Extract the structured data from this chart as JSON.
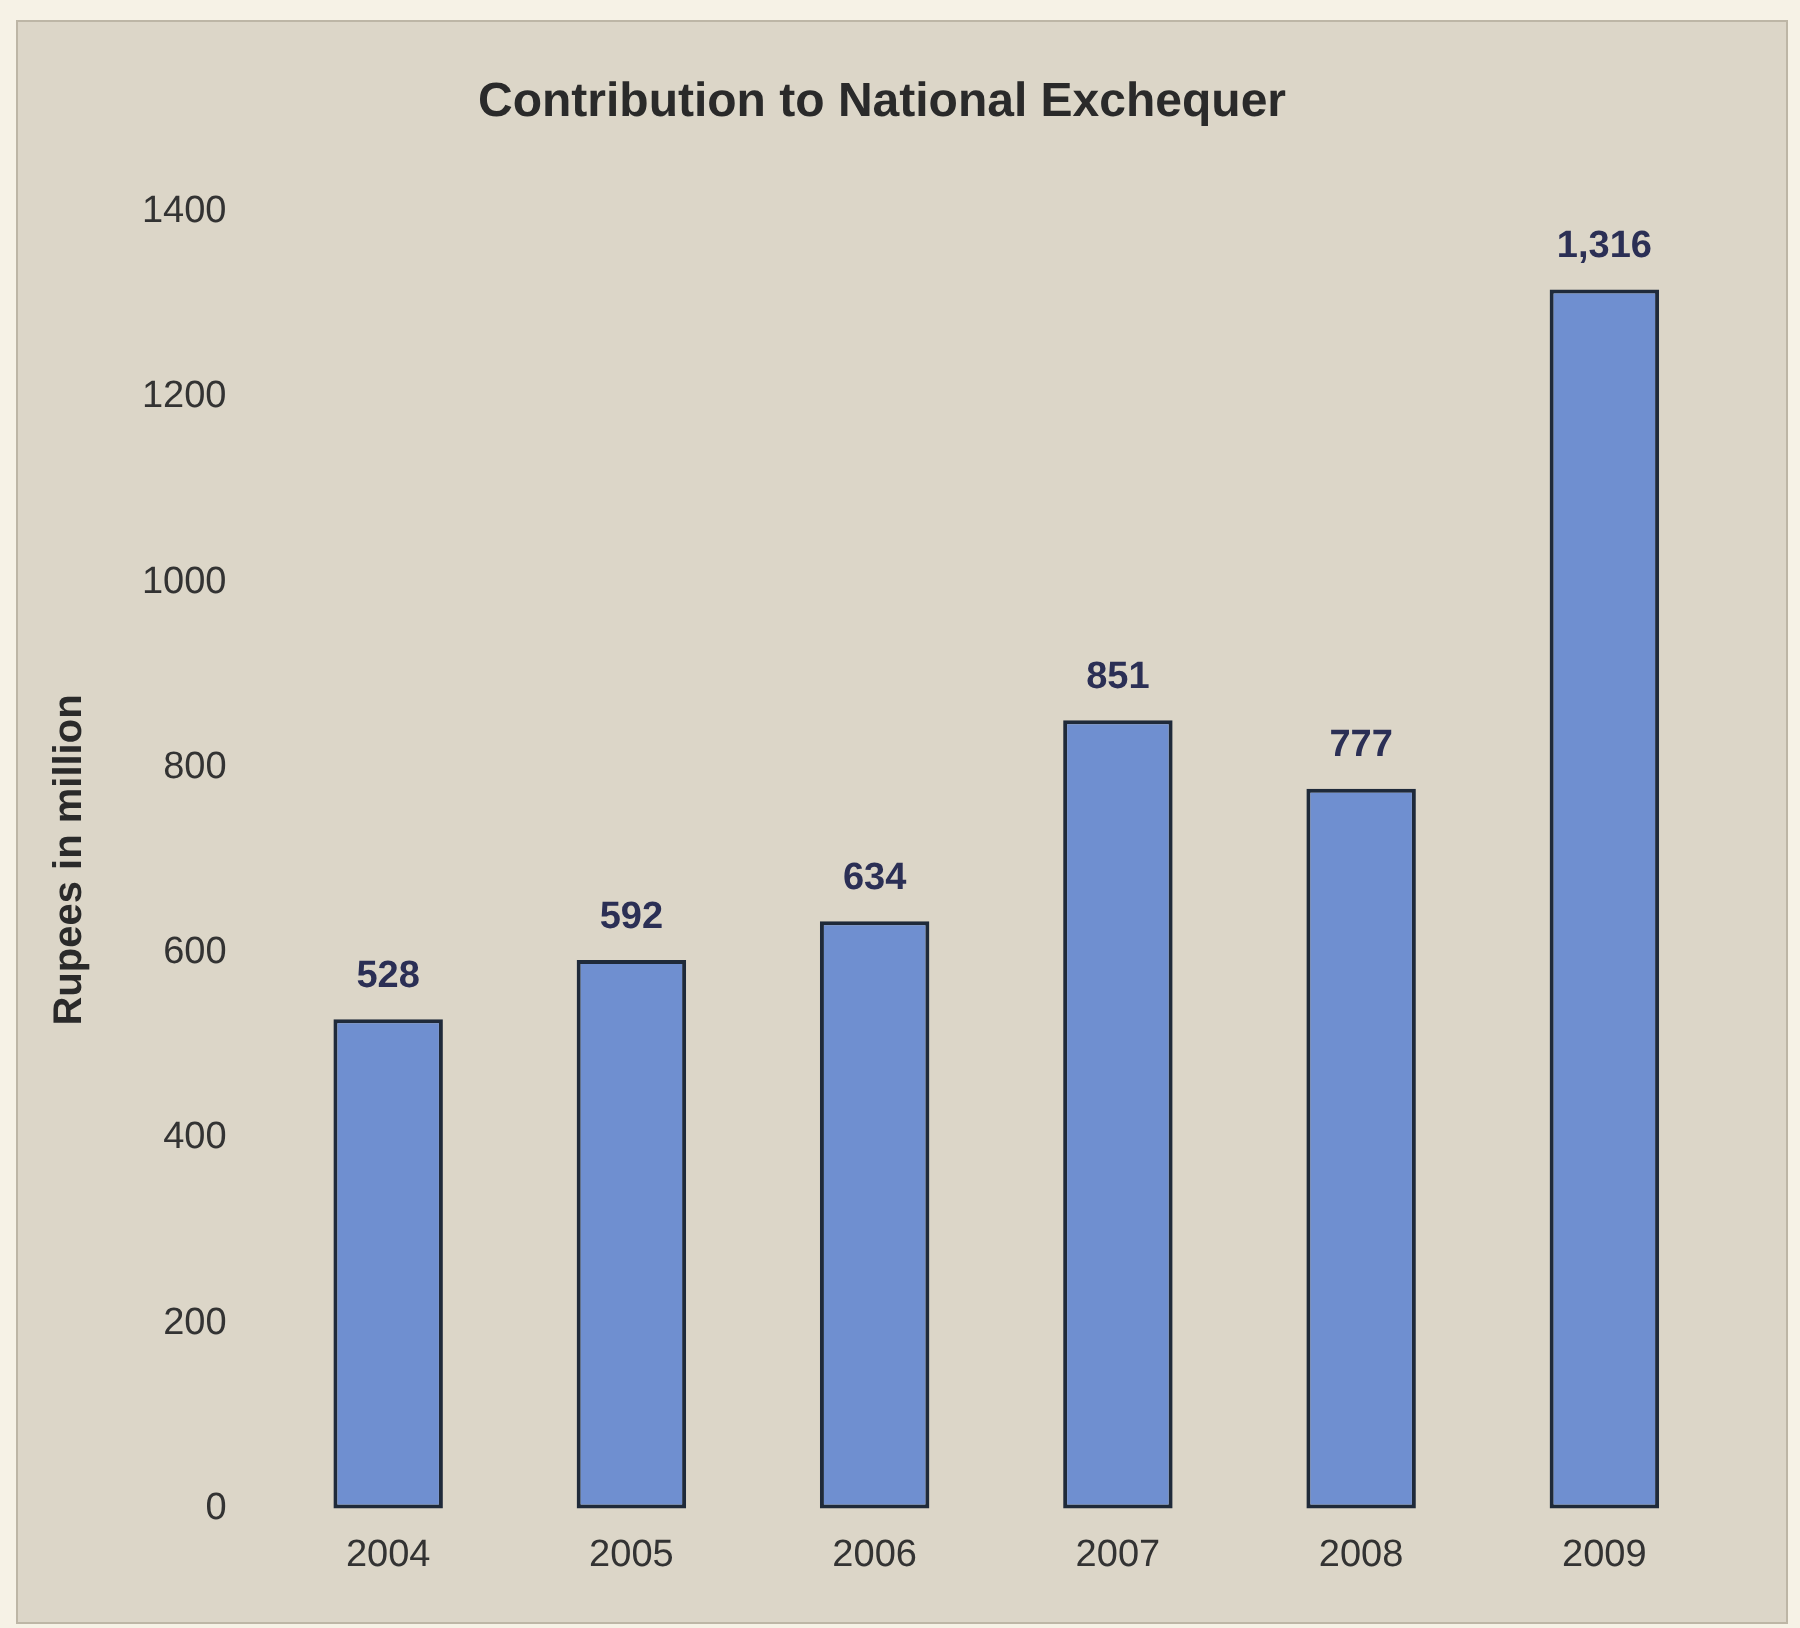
{
  "chart_data": {
    "type": "bar",
    "title": "Contribution to National Exchequer",
    "ylabel": "Rupees in million",
    "categories": [
      "2004",
      "2005",
      "2006",
      "2007",
      "2008",
      "2009"
    ],
    "values": [
      528,
      592,
      634,
      851,
      777,
      1316
    ],
    "value_labels": [
      "528",
      "592",
      "634",
      "851",
      "777",
      "1,316"
    ],
    "color": "#6f8fd0",
    "ylim": [
      0,
      1400
    ],
    "yticks": [
      0,
      200,
      400,
      600,
      800,
      1000,
      1200,
      1400
    ],
    "grid": false
  }
}
